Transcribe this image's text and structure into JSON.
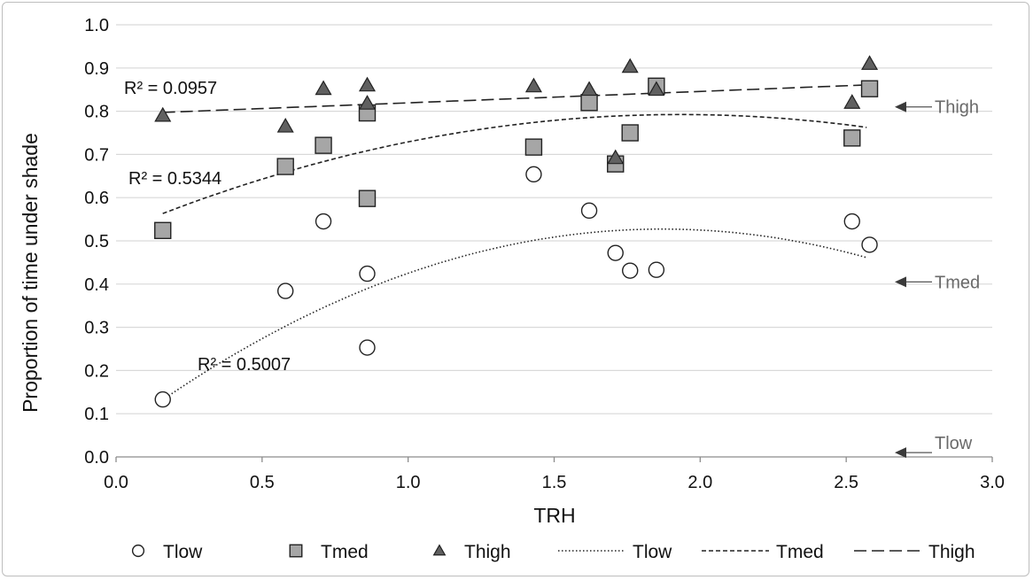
{
  "chart_data": {
    "type": "scatter",
    "xlabel": "TRH",
    "ylabel": "Proportion  of time under shade",
    "xlim": [
      0,
      3
    ],
    "ylim": [
      0,
      1
    ],
    "xticks": [
      "0.0",
      "0.5",
      "1.0",
      "1.5",
      "2.0",
      "2.5",
      "3.0"
    ],
    "yticks": [
      "0.0",
      "0.1",
      "0.2",
      "0.3",
      "0.4",
      "0.5",
      "0.6",
      "0.7",
      "0.8",
      "0.9",
      "1.0"
    ],
    "grid": "horizontal",
    "legend_position": "bottom",
    "series": [
      {
        "name": "Tlow",
        "marker": "circle",
        "color": "#ffffff",
        "points": [
          [
            0.16,
            0.133
          ],
          [
            0.58,
            0.384
          ],
          [
            0.71,
            0.545
          ],
          [
            0.86,
            0.424
          ],
          [
            0.86,
            0.253
          ],
          [
            1.43,
            0.654
          ],
          [
            1.62,
            0.57
          ],
          [
            1.71,
            0.472
          ],
          [
            1.76,
            0.431
          ],
          [
            1.85,
            0.433
          ],
          [
            2.52,
            0.545
          ],
          [
            2.58,
            0.491
          ]
        ]
      },
      {
        "name": "Tmed",
        "marker": "square",
        "color": "#a6a6a6",
        "points": [
          [
            0.16,
            0.524
          ],
          [
            0.58,
            0.672
          ],
          [
            0.71,
            0.721
          ],
          [
            0.86,
            0.796
          ],
          [
            0.86,
            0.598
          ],
          [
            1.43,
            0.717
          ],
          [
            1.62,
            0.82
          ],
          [
            1.71,
            0.678
          ],
          [
            1.76,
            0.75
          ],
          [
            1.85,
            0.858
          ],
          [
            2.52,
            0.738
          ],
          [
            2.58,
            0.852
          ]
        ]
      },
      {
        "name": "Thigh",
        "marker": "triangle",
        "color": "#606060",
        "points": [
          [
            0.16,
            0.79
          ],
          [
            0.58,
            0.765
          ],
          [
            0.71,
            0.852
          ],
          [
            0.86,
            0.86
          ],
          [
            0.86,
            0.818
          ],
          [
            1.43,
            0.858
          ],
          [
            1.62,
            0.85
          ],
          [
            1.71,
            0.692
          ],
          [
            1.76,
            0.903
          ],
          [
            1.85,
            0.85
          ],
          [
            2.52,
            0.82
          ],
          [
            2.58,
            0.91
          ]
        ]
      }
    ],
    "trendlines": [
      {
        "name": "Tlow",
        "style": "dotted",
        "type": "polynomial",
        "coef": [
          0.055,
          0.505,
          -0.135
        ],
        "x_range": [
          0.16,
          2.57
        ],
        "r2_label": "R² = 0.5007"
      },
      {
        "name": "Tmed",
        "style": "short-dash",
        "type": "polynomial",
        "coef": [
          0.52,
          0.282,
          -0.073
        ],
        "x_range": [
          0.16,
          2.57
        ],
        "r2_label": "R² = 0.5344"
      },
      {
        "name": "Thigh",
        "style": "long-dash",
        "type": "linear",
        "coef": [
          0.793,
          0.0264,
          0
        ],
        "x_range": [
          0.16,
          2.57
        ],
        "r2_label": "R² = 0.0957"
      }
    ],
    "annotations": [
      {
        "text": "Thigh",
        "y": 0.81
      },
      {
        "text": "Tmed",
        "y": 0.405
      },
      {
        "text": "Tlow",
        "y": 0.01
      }
    ]
  }
}
